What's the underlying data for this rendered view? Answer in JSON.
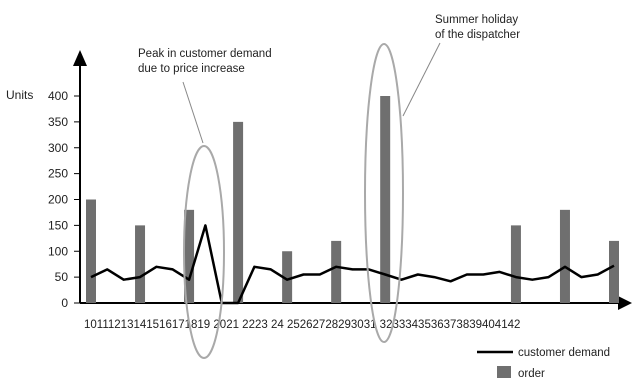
{
  "chart_data": {
    "type": "bar",
    "x": [
      10,
      11,
      12,
      13,
      14,
      15,
      16,
      17,
      18,
      19,
      20,
      21,
      22,
      23,
      24,
      25,
      26,
      27,
      28,
      29,
      30,
      31,
      32,
      33,
      34,
      35,
      36,
      37,
      38,
      39,
      40,
      41,
      42
    ],
    "x_labels_line": "10111213141516171819 2021 2223 24 25262728293031 3233343536373839404142",
    "ylabel": "Units",
    "ylim": [
      0,
      400
    ],
    "yticks": [
      0,
      50,
      100,
      150,
      200,
      250,
      300,
      350,
      400
    ],
    "grid": false,
    "legend_position": "bottom-right",
    "series": [
      {
        "name": "customer demand",
        "kind": "line",
        "color": "#000000",
        "values": [
          50,
          65,
          45,
          50,
          70,
          65,
          45,
          150,
          0,
          0,
          70,
          65,
          45,
          55,
          55,
          70,
          65,
          65,
          55,
          45,
          55,
          50,
          42,
          55,
          55,
          60,
          50,
          45,
          50,
          70,
          50,
          55,
          72
        ]
      },
      {
        "name": "order",
        "kind": "bar",
        "color": "#6f6f6f",
        "values": [
          200,
          0,
          0,
          150,
          0,
          0,
          180,
          0,
          0,
          350,
          0,
          0,
          100,
          0,
          0,
          120,
          0,
          0,
          400,
          0,
          0,
          0,
          0,
          0,
          0,
          0,
          150,
          0,
          0,
          180,
          0,
          0,
          120
        ]
      }
    ],
    "annotations": [
      {
        "lines": [
          "Peak in customer demand",
          "due to price increase"
        ],
        "target_x": 17
      },
      {
        "lines": [
          "Summer holiday",
          "of the dispatcher"
        ],
        "target_x": 28
      }
    ]
  }
}
